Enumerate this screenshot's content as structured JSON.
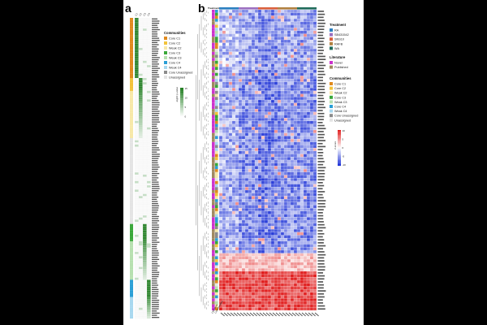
{
  "panels": {
    "a": "a",
    "b": "b"
  },
  "colors": {
    "core_c1": "#e08a1e",
    "core_c2": "#f2c33a",
    "weak_c2": "#f7e8a8",
    "core_c3": "#3aa83a",
    "weak_c3": "#b7e0b0",
    "core_c4": "#2a9fd6",
    "weak_c4": "#a8d8ef",
    "core_unassigned": "#8c8c8c",
    "unassigned": "#e4e4e4",
    "treat_ra": "#2a7fc0",
    "treat_sb": "#9b6fc0",
    "treat_sns": "#d95f3b",
    "treat_rafb": "#b08040",
    "treat_wa": "#1f6b5a",
    "novel": "#cc33cc",
    "published": "#a08860",
    "heat_low": "#1a2fd6",
    "heat_mid": "#ffffff",
    "heat_high": "#e01a1a",
    "green_dark": "#1a7a1a"
  },
  "panel_a": {
    "legend_communities_title": "Communities",
    "communities": [
      {
        "label": "Core C1",
        "color_key": "core_c1"
      },
      {
        "label": "Core C2",
        "color_key": "core_c2"
      },
      {
        "label": "Weak C2",
        "color_key": "weak_c2"
      },
      {
        "label": "Core C3",
        "color_key": "core_c3"
      },
      {
        "label": "Weak C3",
        "color_key": "weak_c3"
      },
      {
        "label": "Core C4",
        "color_key": "core_c4"
      },
      {
        "label": "Weak C4",
        "color_key": "weak_c4"
      },
      {
        "label": "Core Unassigned",
        "color_key": "core_unassigned"
      },
      {
        "label": "Unassigned",
        "color_key": "unassigned"
      }
    ],
    "colorbar_label": "-log10 p-value",
    "colorbar_ticks": [
      "15",
      "10",
      "5",
      "0"
    ],
    "column_headers": [
      "C1",
      "C2",
      "C3",
      "C4"
    ],
    "row_blocks": [
      {
        "community": "core_c1",
        "rows": 28
      },
      {
        "community": "core_c2",
        "rows": 6
      },
      {
        "community": "weak_c2",
        "rows": 22
      },
      {
        "community": "unassigned",
        "rows": 40
      },
      {
        "community": "core_c3",
        "rows": 8
      },
      {
        "community": "weak_c3",
        "rows": 18
      },
      {
        "community": "core_c4",
        "rows": 8
      },
      {
        "community": "weak_c4",
        "rows": 10
      }
    ]
  },
  "panel_b": {
    "treatment_header": "Treatment",
    "legend_treatment_title": "Treatment",
    "treatments": [
      {
        "label": "RA",
        "color_key": "treat_ra"
      },
      {
        "label": "SB431542",
        "color_key": "treat_sb"
      },
      {
        "label": "SNS10",
        "color_key": "treat_sns"
      },
      {
        "label": "RAFB",
        "color_key": "treat_rafb"
      },
      {
        "label": "WA",
        "color_key": "treat_wa"
      }
    ],
    "legend_literature_title": "Literature",
    "literature": [
      {
        "label": "Novel",
        "color_key": "novel"
      },
      {
        "label": "Published",
        "color_key": "published"
      }
    ],
    "legend_communities_title": "Communities",
    "communities": [
      {
        "label": "Core C1",
        "color_key": "core_c1"
      },
      {
        "label": "Core C2",
        "color_key": "core_c2"
      },
      {
        "label": "Weak C2",
        "color_key": "weak_c2"
      },
      {
        "label": "Core C3",
        "color_key": "core_c3"
      },
      {
        "label": "Weak C3",
        "color_key": "weak_c3"
      },
      {
        "label": "Core C4",
        "color_key": "core_c4"
      },
      {
        "label": "Weak C4",
        "color_key": "weak_c4"
      },
      {
        "label": "Core Unassigned",
        "color_key": "core_unassigned"
      },
      {
        "label": "Unassigned",
        "color_key": "unassigned"
      }
    ],
    "zscore_label": "Z-score",
    "zscore_ticks": [
      "10",
      "5",
      "0",
      "-5",
      "-10"
    ],
    "treatment_groups": [
      {
        "color_key": "treat_ra",
        "cols": 6
      },
      {
        "color_key": "treat_sb",
        "cols": 6
      },
      {
        "color_key": "treat_sns",
        "cols": 6
      },
      {
        "color_key": "treat_rafb",
        "cols": 6
      },
      {
        "color_key": "treat_wa",
        "cols": 6
      }
    ],
    "row_side_labels": [
      "Literature",
      "Communities"
    ]
  }
}
